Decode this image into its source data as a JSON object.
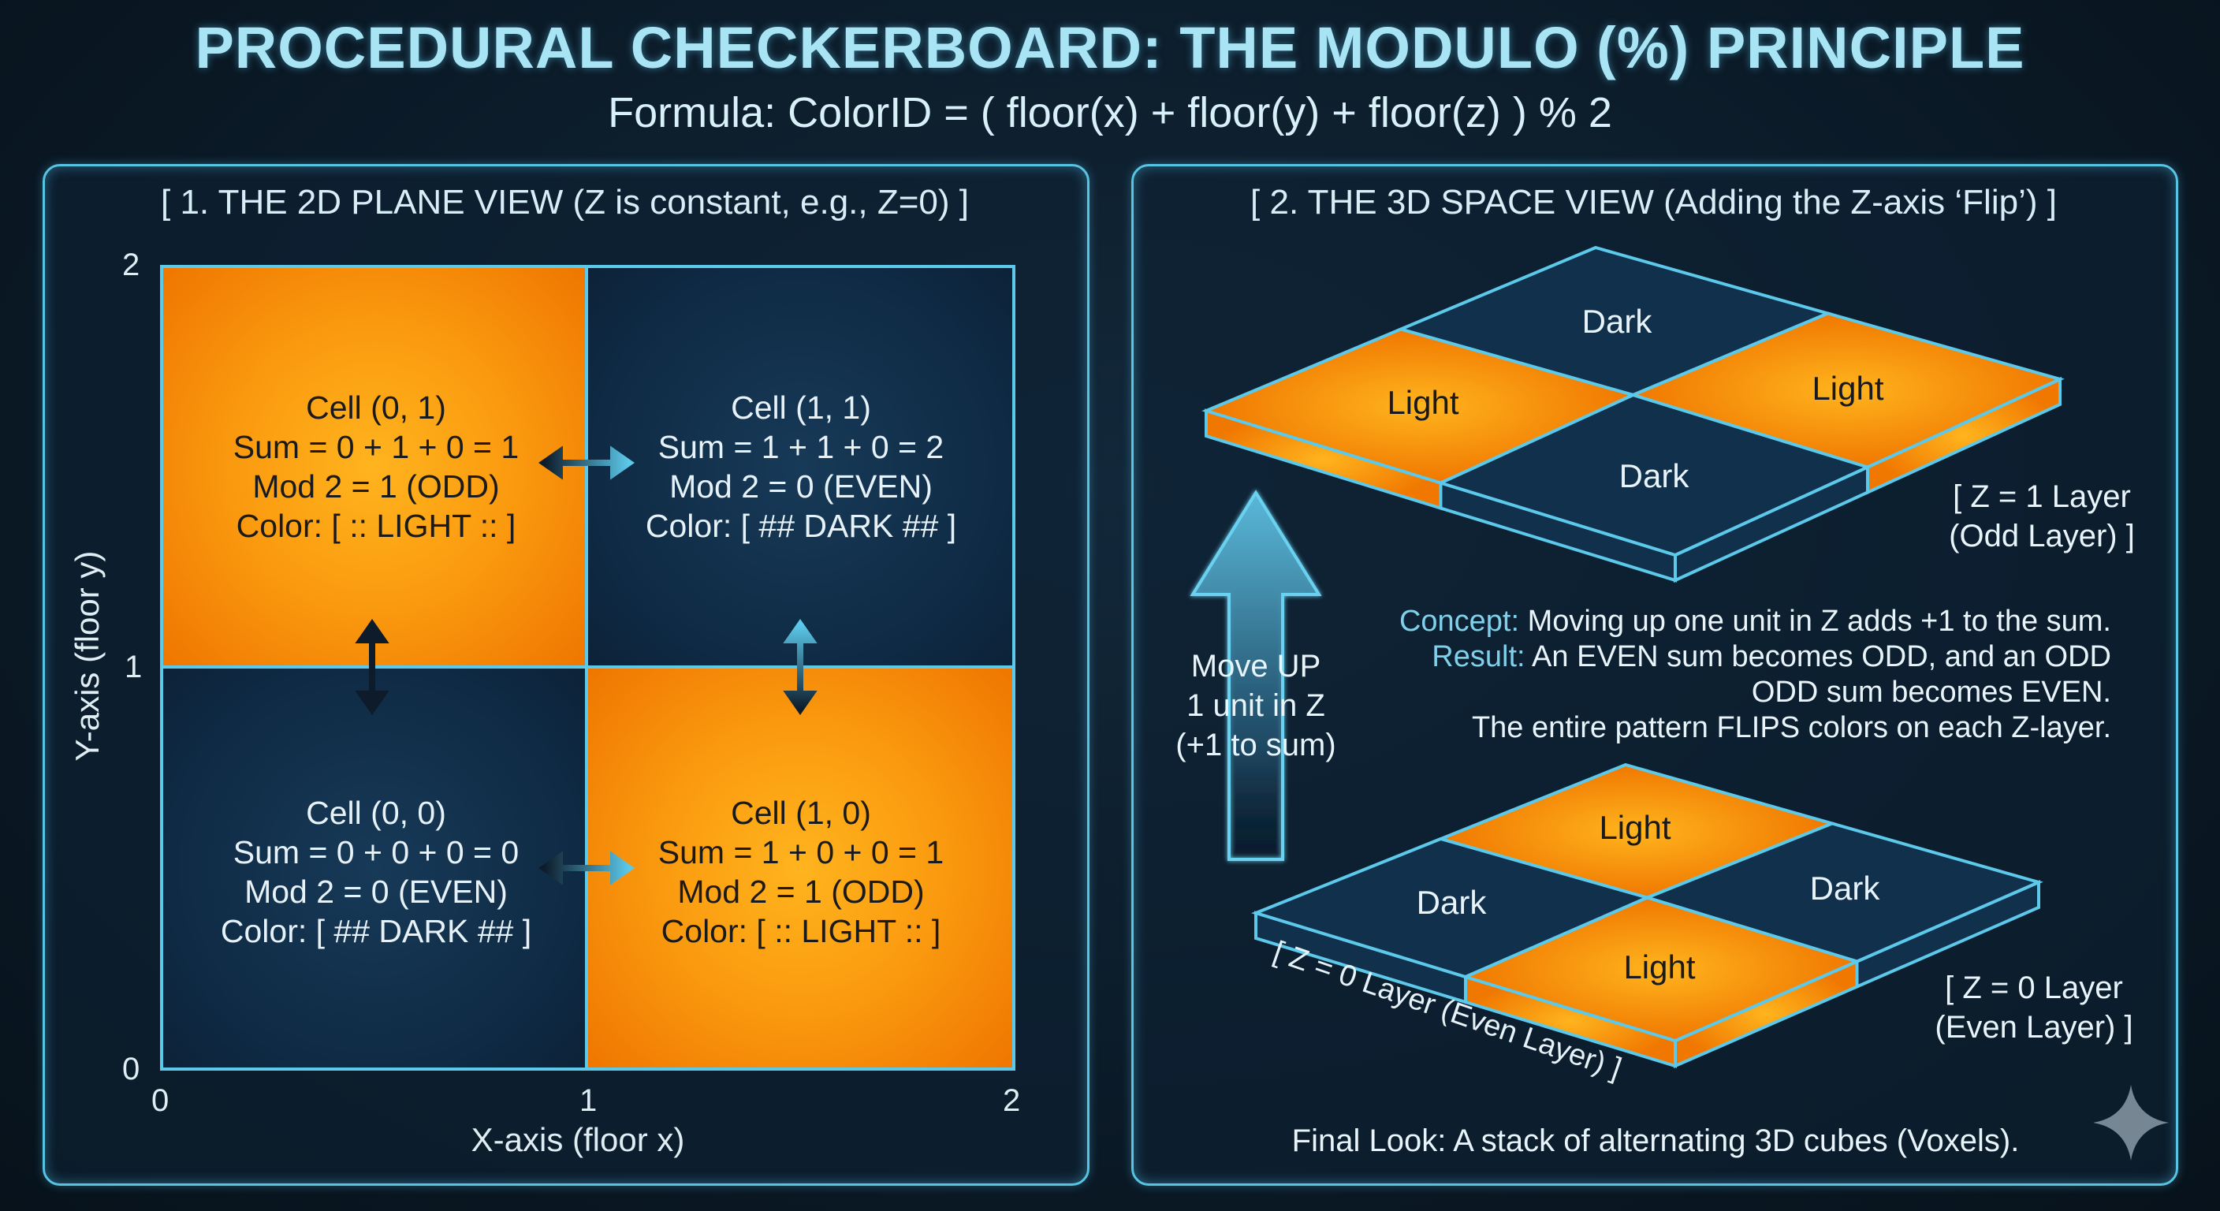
{
  "title": "PROCEDURAL CHECKERBOARD: THE MODULO (%) PRINCIPLE",
  "formula": "Formula: ColorID = ( floor(x) + floor(y) + floor(z) ) % 2",
  "left_panel": {
    "heading": "[ 1. THE 2D PLANE VIEW (Z is constant, e.g., Z=0) ]",
    "x_axis_label": "X-axis (floor x)",
    "y_axis_label": "Y-axis (floor y)",
    "x_ticks": [
      "0",
      "1",
      "2"
    ],
    "y_ticks": [
      "2",
      "1",
      "0"
    ],
    "cells": {
      "c01": {
        "lines": [
          "Cell (0, 1)",
          "Sum = 0 + 1 + 0 = 1",
          "Mod 2 = 1 (ODD)",
          "Color: [ :: LIGHT :: ]"
        ]
      },
      "c11": {
        "lines": [
          "Cell (1, 1)",
          "Sum = 1 + 1 + 0 = 2",
          "Mod 2 = 0 (EVEN)",
          "Color: [ ## DARK ## ]"
        ]
      },
      "c00": {
        "lines": [
          "Cell (0, 0)",
          "Sum = 0 + 0 + 0 = 0",
          "Mod 2 = 0 (EVEN)",
          "Color: [ ## DARK ## ]"
        ]
      },
      "c10": {
        "lines": [
          "Cell (1, 0)",
          "Sum = 1 + 0 + 0 = 1",
          "Mod 2 = 1 (ODD)",
          "Color: [ :: LIGHT :: ]"
        ]
      }
    }
  },
  "right_panel": {
    "heading": "[ 2. THE 3D SPACE VIEW (Adding the Z-axis ‘Flip’) ]",
    "top_layer": {
      "top": "Dark",
      "left": "Light",
      "right": "Light",
      "bottom": "Dark",
      "label_line1": "[ Z = 1 Layer",
      "label_line2": "(Odd Layer) ]"
    },
    "bottom_layer": {
      "top": "Light",
      "left": "Dark",
      "right": "Dark",
      "bottom": "Light",
      "label_line1": "[ Z = 0 Layer",
      "label_line2": "(Even Layer) ]",
      "edge_label": "[ Z = 0 Layer (Even Layer) ]"
    },
    "arrow_text": [
      "Move UP",
      "1 unit in Z",
      "(+1 to sum)"
    ],
    "concept_label": "Concept:",
    "concept_text": " Moving up one unit in Z adds +1 to the sum.",
    "result_label": "Result:",
    "result_text": " An EVEN sum becomes ODD, and an ODD",
    "result_line2": "ODD sum becomes EVEN.",
    "result_line3": "The entire pattern FLIPS colors on each Z-layer.",
    "footer": "Final Look: A stack of alternating 3D cubes (Voxels)."
  },
  "colors": {
    "accent": "#58c4e4",
    "light": "#fb9c10",
    "dark": "#0f2a44",
    "label_accent": "#7fd0ea"
  }
}
